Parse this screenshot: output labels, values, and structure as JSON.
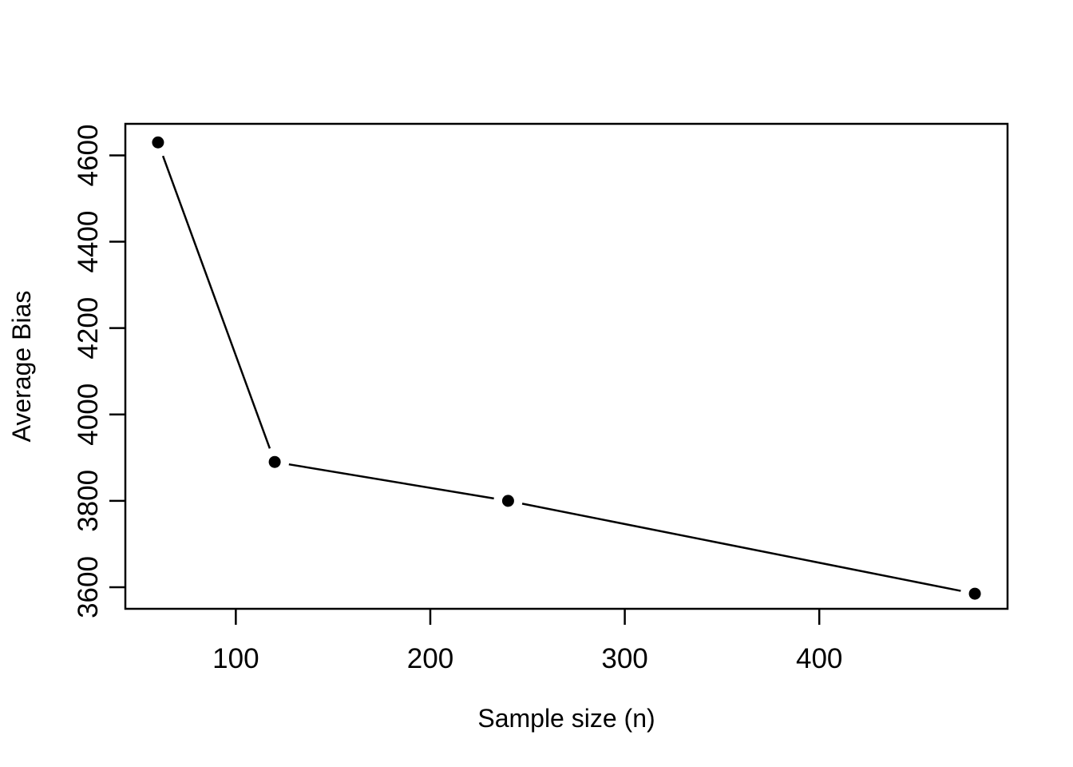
{
  "figure": {
    "background": "#ffffff",
    "foreground": "#000000"
  },
  "chart_data": {
    "type": "line",
    "title": "",
    "xlabel": "Sample size (n)",
    "ylabel": "Average Bias",
    "x": [
      60,
      120,
      240,
      480
    ],
    "y": [
      4630,
      3890,
      3800,
      3585
    ],
    "series": [
      {
        "name": "Average Bias",
        "x": [
          60,
          120,
          240,
          480
        ],
        "y": [
          4630,
          3890,
          3800,
          3585
        ]
      }
    ],
    "xticks": [
      100,
      200,
      300,
      400
    ],
    "yticks": [
      3600,
      3800,
      4000,
      4200,
      4400,
      4600
    ],
    "xlim": [
      43.2,
      496.8
    ],
    "ylim": [
      3550,
      4673
    ],
    "grid": false,
    "legend": null,
    "frame_box": true,
    "marker": "filled-circle",
    "line_style": "points-and-segments-with-gaps",
    "line_color": "#000000",
    "point_color": "#000000"
  }
}
